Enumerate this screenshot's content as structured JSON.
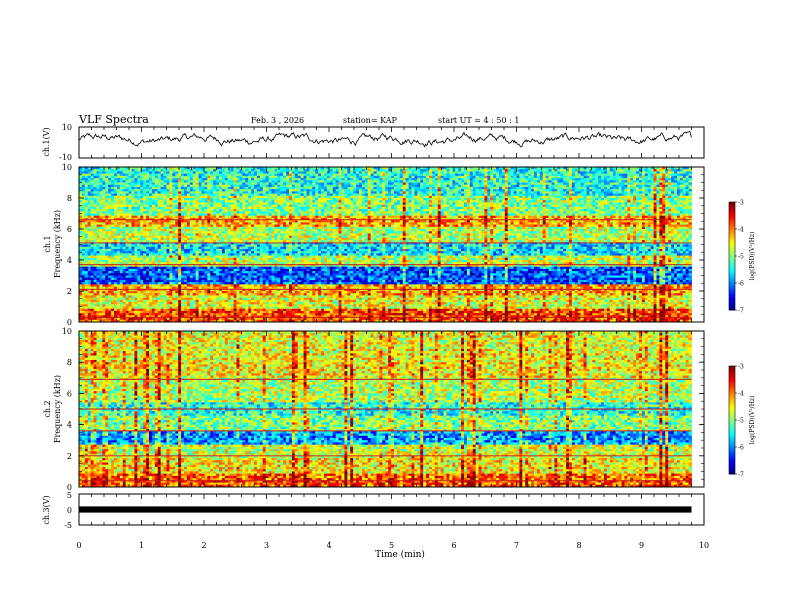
{
  "header": {
    "title": "VLF Spectra",
    "date": "Feb. 3 , 2026",
    "station": "station= KAP",
    "start": "start  UT =   4 : 50 : 1"
  },
  "chart_data": [
    {
      "id": "ch1-voltage",
      "type": "line",
      "ylabel": "ch.1(V)",
      "ylim": [
        -10,
        10
      ],
      "yticks": [
        "10",
        "-10"
      ],
      "xlim": [
        0,
        10
      ],
      "series": [
        {
          "name": "ch.1 waveform",
          "x_range_min": [
            0,
            9.8
          ],
          "mean": 2,
          "amplitude": 4
        }
      ]
    },
    {
      "id": "ch1-spectrogram",
      "type": "heatmap",
      "ylabel": "ch.1\nFrequency (kHz)",
      "ylim": [
        0,
        10
      ],
      "yticks": [
        "0",
        "2",
        "4",
        "6",
        "8",
        "10"
      ],
      "xlim": [
        0,
        10
      ],
      "data_extent_min": 9.8,
      "bands_khz": [
        {
          "from": 0,
          "to": 0.8,
          "level": -3.8
        },
        {
          "from": 0.8,
          "to": 1.7,
          "level": -4.6
        },
        {
          "from": 1.7,
          "to": 2.5,
          "level": -4.2
        },
        {
          "from": 2.5,
          "to": 3.6,
          "level": -6.2
        },
        {
          "from": 3.6,
          "to": 4.3,
          "level": -4.8
        },
        {
          "from": 4.3,
          "to": 5.2,
          "level": -5.6
        },
        {
          "from": 5.2,
          "to": 6.2,
          "level": -4.8
        },
        {
          "from": 6.2,
          "to": 6.8,
          "level": -4.2
        },
        {
          "from": 6.8,
          "to": 8.2,
          "level": -5.0
        },
        {
          "from": 8.2,
          "to": 10,
          "level": -5.4
        }
      ],
      "lines_khz": [
        0.3,
        2.1,
        3.7,
        5.1,
        6.6
      ],
      "colorbar": {
        "label": "log(PSD)(V²/Hz)",
        "min": -7,
        "max": -3,
        "ticks": [
          "-3",
          "-4",
          "-5",
          "-6",
          "-7"
        ]
      }
    },
    {
      "id": "ch2-spectrogram",
      "type": "heatmap",
      "ylabel": "ch.2\nFrequency (kHz)",
      "ylim": [
        0,
        10
      ],
      "yticks": [
        "0",
        "2",
        "4",
        "6",
        "8",
        "10"
      ],
      "xlim": [
        0,
        10
      ],
      "data_extent_min": 9.8,
      "bands_khz": [
        {
          "from": 0,
          "to": 0.8,
          "level": -3.9
        },
        {
          "from": 0.8,
          "to": 1.8,
          "level": -4.5
        },
        {
          "from": 1.8,
          "to": 2.7,
          "level": -4.7
        },
        {
          "from": 2.7,
          "to": 3.6,
          "level": -5.9
        },
        {
          "from": 3.6,
          "to": 4.6,
          "level": -5.0
        },
        {
          "from": 4.6,
          "to": 5.4,
          "level": -5.4
        },
        {
          "from": 5.4,
          "to": 7.0,
          "level": -4.8
        },
        {
          "from": 7.0,
          "to": 8.6,
          "level": -4.5
        },
        {
          "from": 8.6,
          "to": 10,
          "level": -4.6
        }
      ],
      "lines_khz": [
        0.4,
        2.0,
        3.6,
        5.0,
        6.9
      ],
      "colorbar": {
        "label": "log(PSD)(V²/Hz)",
        "min": -7,
        "max": -3,
        "ticks": [
          "-3",
          "-4",
          "-5",
          "-6",
          "-7"
        ]
      }
    },
    {
      "id": "ch3-voltage",
      "type": "line",
      "ylabel": "ch.3(V)",
      "ylim": [
        -5,
        5
      ],
      "yticks": [
        "5",
        "0",
        "-5"
      ],
      "xlim": [
        0,
        10
      ],
      "series": [
        {
          "name": "ch.3 level",
          "x_range_min": [
            0,
            9.8
          ],
          "value": 0,
          "band_halfwidth": 0.4
        }
      ]
    }
  ],
  "xaxis": {
    "label": "Time (min)",
    "ticks": [
      "0",
      "1",
      "2",
      "3",
      "4",
      "5",
      "6",
      "7",
      "8",
      "9",
      "10"
    ]
  },
  "colors": {
    "axis": "#000000",
    "trace": "#000000"
  }
}
